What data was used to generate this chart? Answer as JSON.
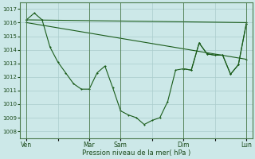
{
  "background_color": "#cce8e8",
  "grid_color": "#aacccc",
  "line_color": "#1a5c1a",
  "marker_color": "#1a5c1a",
  "xlabel": "Pression niveau de la mer( hPa )",
  "ylim": [
    1007.5,
    1017.5
  ],
  "yticks": [
    1008,
    1009,
    1010,
    1011,
    1012,
    1013,
    1014,
    1015,
    1016,
    1017
  ],
  "xtick_labels": [
    "Ven",
    "",
    "Mar",
    "Sam",
    "",
    "Dim",
    "",
    "Lun"
  ],
  "xtick_positions": [
    0,
    24,
    48,
    72,
    96,
    120,
    144,
    168
  ],
  "xlim": [
    -5,
    173
  ],
  "vlines": [
    0,
    48,
    72,
    120,
    168
  ],
  "series1_x": [
    0,
    168
  ],
  "series1_y": [
    1016.2,
    1016.0
  ],
  "series2_x": [
    0,
    168
  ],
  "series2_y": [
    1016.0,
    1013.3
  ],
  "series3_x": [
    0,
    6,
    12,
    18,
    24,
    30,
    36,
    42,
    48,
    54,
    60,
    66,
    72,
    78,
    84,
    90,
    96,
    102,
    108,
    114,
    120,
    126,
    132,
    138,
    144,
    150,
    156,
    162,
    168
  ],
  "series3_y": [
    1016.2,
    1016.7,
    1016.2,
    1014.2,
    1013.1,
    1012.3,
    1011.5,
    1011.1,
    1011.1,
    1012.3,
    1012.8,
    1011.2,
    1009.5,
    1009.2,
    1009.0,
    1008.5,
    1008.8,
    1009.0,
    1010.2,
    1012.5,
    1012.6,
    1012.5,
    1014.5,
    1013.7,
    1013.6,
    1013.6,
    1012.2,
    1012.9,
    1015.9
  ],
  "series4_x": [
    120,
    126,
    132,
    138,
    144,
    150,
    156,
    162,
    168
  ],
  "series4_y": [
    1012.6,
    1012.5,
    1014.5,
    1013.7,
    1013.6,
    1013.6,
    1012.2,
    1012.9,
    1015.9
  ]
}
